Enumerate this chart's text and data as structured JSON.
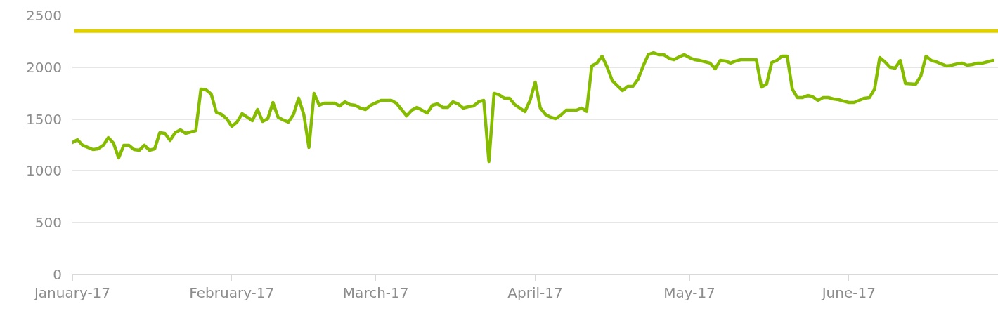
{
  "chart_data": {
    "type": "line",
    "x": [
      "2017-01-01",
      "2017-01-02",
      "2017-01-03",
      "2017-01-05",
      "2017-01-06",
      "2017-01-07",
      "2017-01-08",
      "2017-01-09",
      "2017-01-10",
      "2017-01-11",
      "2017-01-12",
      "2017-01-13",
      "2017-01-14",
      "2017-01-15",
      "2017-01-16",
      "2017-01-17",
      "2017-01-18",
      "2017-01-19",
      "2017-01-20",
      "2017-01-21",
      "2017-01-22",
      "2017-01-23",
      "2017-01-25",
      "2017-01-26",
      "2017-01-27",
      "2017-01-28",
      "2017-01-29",
      "2017-01-30",
      "2017-01-31",
      "2017-02-01",
      "2017-02-02",
      "2017-02-03",
      "2017-02-04",
      "2017-02-05",
      "2017-02-06",
      "2017-02-07",
      "2017-02-08",
      "2017-02-09",
      "2017-02-10",
      "2017-02-11",
      "2017-02-12",
      "2017-02-13",
      "2017-02-14",
      "2017-02-15",
      "2017-02-16",
      "2017-02-17",
      "2017-02-18",
      "2017-02-19",
      "2017-02-21",
      "2017-02-22",
      "2017-02-23",
      "2017-02-24",
      "2017-02-25",
      "2017-02-26",
      "2017-02-27",
      "2017-02-28",
      "2017-03-02",
      "2017-03-04",
      "2017-03-05",
      "2017-03-07",
      "2017-03-08",
      "2017-03-09",
      "2017-03-11",
      "2017-03-12",
      "2017-03-13",
      "2017-03-14",
      "2017-03-15",
      "2017-03-16",
      "2017-03-17",
      "2017-03-18",
      "2017-03-19",
      "2017-03-20",
      "2017-03-21",
      "2017-03-22",
      "2017-03-23",
      "2017-03-24",
      "2017-03-25",
      "2017-03-26",
      "2017-03-27",
      "2017-03-28",
      "2017-03-30",
      "2017-03-31",
      "2017-04-01",
      "2017-04-02",
      "2017-04-03",
      "2017-04-04",
      "2017-04-05",
      "2017-04-06",
      "2017-04-07",
      "2017-04-09",
      "2017-04-10",
      "2017-04-11",
      "2017-04-12",
      "2017-04-13",
      "2017-04-14",
      "2017-04-15",
      "2017-04-16",
      "2017-04-17",
      "2017-04-18",
      "2017-04-19",
      "2017-04-20",
      "2017-04-21",
      "2017-04-22",
      "2017-04-23",
      "2017-04-24",
      "2017-04-25",
      "2017-04-26",
      "2017-04-27",
      "2017-04-28",
      "2017-04-29",
      "2017-04-30",
      "2017-05-01",
      "2017-05-02",
      "2017-05-03",
      "2017-05-04",
      "2017-05-05",
      "2017-05-06",
      "2017-05-07",
      "2017-05-08",
      "2017-05-09",
      "2017-05-10",
      "2017-05-11",
      "2017-05-14",
      "2017-05-15",
      "2017-05-16",
      "2017-05-17",
      "2017-05-18",
      "2017-05-19",
      "2017-05-20",
      "2017-05-21",
      "2017-05-22",
      "2017-05-23",
      "2017-05-24",
      "2017-05-25",
      "2017-05-26",
      "2017-05-27",
      "2017-05-28",
      "2017-05-29",
      "2017-05-30",
      "2017-05-31",
      "2017-06-01",
      "2017-06-02",
      "2017-06-03",
      "2017-06-04",
      "2017-06-05",
      "2017-06-06",
      "2017-06-07",
      "2017-06-08",
      "2017-06-09",
      "2017-06-10",
      "2017-06-11",
      "2017-06-12",
      "2017-06-14",
      "2017-06-15",
      "2017-06-16",
      "2017-06-17",
      "2017-06-18",
      "2017-06-19",
      "2017-06-20",
      "2017-06-21",
      "2017-06-22",
      "2017-06-23",
      "2017-06-24",
      "2017-06-25",
      "2017-06-26",
      "2017-06-27",
      "2017-06-28",
      "2017-06-29"
    ],
    "series": [
      {
        "color": "#86bc00",
        "values": [
          1274,
          1301,
          1247,
          1206,
          1213,
          1247,
          1321,
          1267,
          1125,
          1247,
          1247,
          1206,
          1199,
          1247,
          1199,
          1213,
          1369,
          1362,
          1294,
          1369,
          1396,
          1362,
          1389,
          1789,
          1782,
          1741,
          1565,
          1545,
          1504,
          1430,
          1470,
          1552,
          1518,
          1484,
          1592,
          1477,
          1504,
          1660,
          1518,
          1491,
          1470,
          1545,
          1701,
          1545,
          1226,
          1748,
          1633,
          1653,
          1653,
          1626,
          1667,
          1640,
          1633,
          1606,
          1592,
          1633,
          1680,
          1680,
          1653,
          1531,
          1585,
          1613,
          1558,
          1633,
          1646,
          1613,
          1613,
          1667,
          1646,
          1606,
          1619,
          1626,
          1667,
          1680,
          1091,
          1748,
          1734,
          1701,
          1701,
          1640,
          1572,
          1680,
          1856,
          1606,
          1545,
          1518,
          1504,
          1538,
          1585,
          1585,
          1606,
          1575,
          2012,
          2040,
          2107,
          2000,
          1870,
          1822,
          1775,
          1816,
          1816,
          1884,
          2012,
          2121,
          2141,
          2121,
          2121,
          2087,
          2073,
          2100,
          2121,
          2093,
          2073,
          2066,
          2053,
          2040,
          1985,
          2066,
          2060,
          2040,
          2060,
          2073,
          2073,
          1809,
          1836,
          2046,
          2066,
          2107,
          2107,
          1789,
          1707,
          1707,
          1728,
          1714,
          1680,
          1707,
          1707,
          1694,
          1687,
          1673,
          1660,
          1660,
          1680,
          1701,
          1707,
          1789,
          2093,
          2053,
          2000,
          1992,
          2066,
          1843,
          1836,
          1917,
          2107,
          2066,
          2053,
          2032,
          2012,
          2019,
          2032,
          2040,
          2019,
          2026,
          2040,
          2040,
          2053,
          2066
        ]
      }
    ],
    "xlim": [
      "2017-01-01",
      "2017-06-30"
    ],
    "xticks": [
      {
        "value": "2017-01-01",
        "label": "January-17"
      },
      {
        "value": "2017-02-01",
        "label": "February-17"
      },
      {
        "value": "2017-03-01",
        "label": "March-17"
      },
      {
        "value": "2017-04-01",
        "label": "April-17"
      },
      {
        "value": "2017-05-01",
        "label": "May-17"
      },
      {
        "value": "2017-06-01",
        "label": "June-17"
      }
    ],
    "ylim": [
      0,
      2500
    ],
    "yticks": [
      0,
      500,
      1000,
      1500,
      2000,
      2500
    ],
    "ref_lines": [
      {
        "axis": "y",
        "value": 2350,
        "color": "#e0d000"
      }
    ],
    "grid": "y",
    "line_style": "solid",
    "marker": "none"
  }
}
